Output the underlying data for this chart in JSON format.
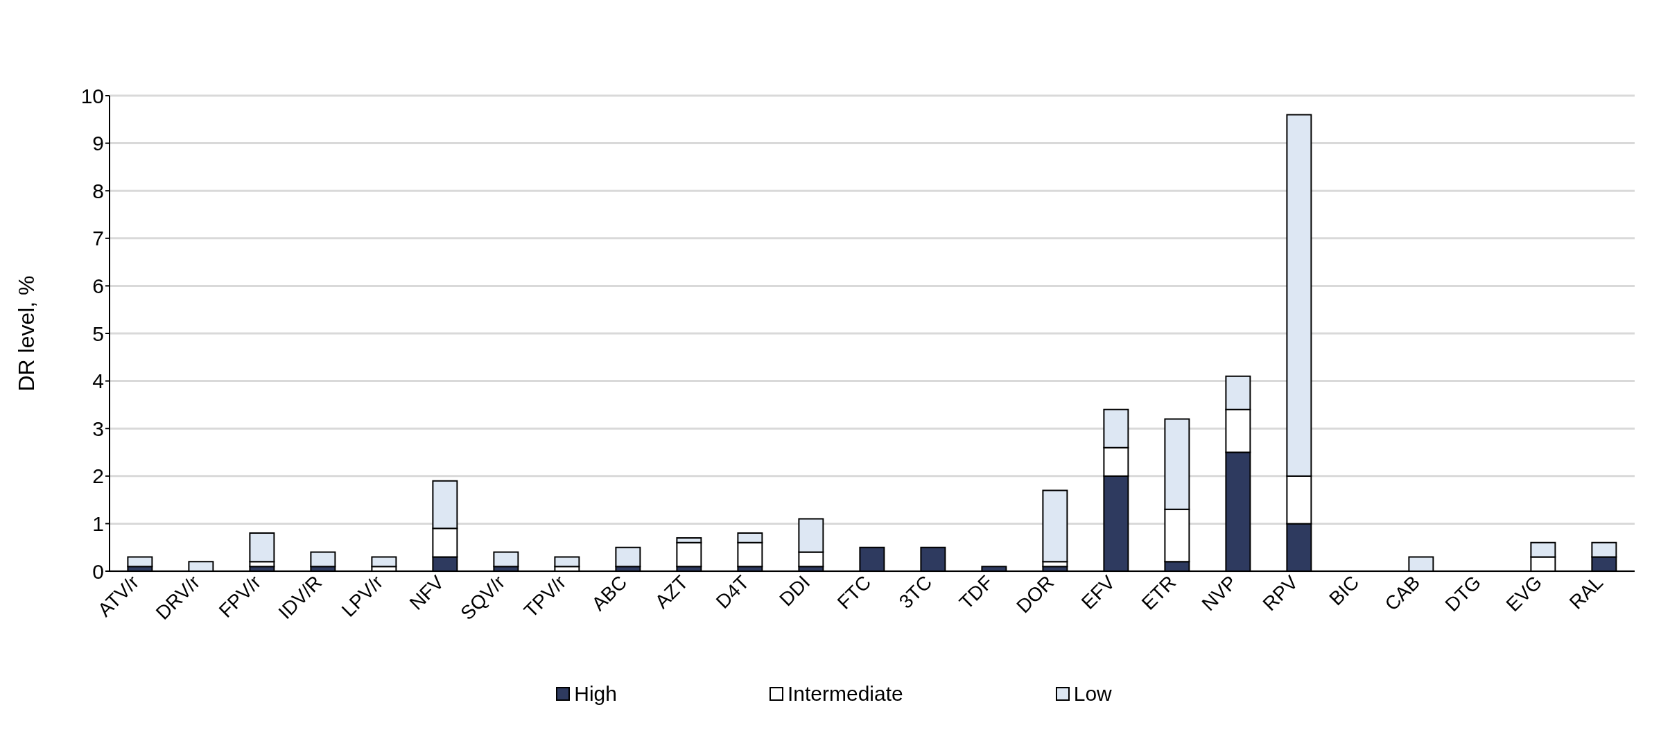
{
  "chart_data": {
    "type": "bar",
    "ylabel": "DR level, %",
    "stacked": true,
    "categories": [
      "ATV/r",
      "DRV/r",
      "FPV/r",
      "IDV/R",
      "LPV/r",
      "NFV",
      "SQV/r",
      "TPV/r",
      "ABC",
      "AZT",
      "D4T",
      "DDI",
      "FTC",
      "3TC",
      "TDF",
      "DOR",
      "EFV",
      "ETR",
      "NVP",
      "RPV",
      "BIC",
      "CAB",
      "DTG",
      "EVG",
      "RAL"
    ],
    "series": [
      {
        "name": "High",
        "color": "#2e3a5f",
        "values": [
          0.1,
          0,
          0.1,
          0.1,
          0,
          0.3,
          0.1,
          0,
          0.1,
          0.1,
          0.1,
          0.1,
          0.5,
          0.5,
          0.1,
          0.1,
          2.0,
          0.2,
          2.5,
          1.0,
          0,
          0,
          0,
          0,
          0.3
        ]
      },
      {
        "name": "Intermediate",
        "color": "#ffffff",
        "values": [
          0,
          0,
          0.1,
          0,
          0.1,
          0.6,
          0,
          0.1,
          0,
          0.5,
          0.5,
          0.3,
          0,
          0,
          0,
          0.1,
          0.6,
          1.1,
          0.9,
          1.0,
          0,
          0,
          0,
          0.3,
          0
        ]
      },
      {
        "name": "Low",
        "color": "#dde7f3",
        "values": [
          0.2,
          0.2,
          0.6,
          0.3,
          0.2,
          1.0,
          0.3,
          0.2,
          0.4,
          0.1,
          0.2,
          0.7,
          0,
          0,
          0,
          1.5,
          0.8,
          1.9,
          0.7,
          7.6,
          0,
          0.3,
          0,
          0.3,
          0.3
        ]
      }
    ],
    "ylim": [
      0,
      10
    ],
    "yticks": [
      0,
      1,
      2,
      3,
      4,
      5,
      6,
      7,
      8,
      9,
      10
    ],
    "grid": "y",
    "legend": "bottom"
  }
}
